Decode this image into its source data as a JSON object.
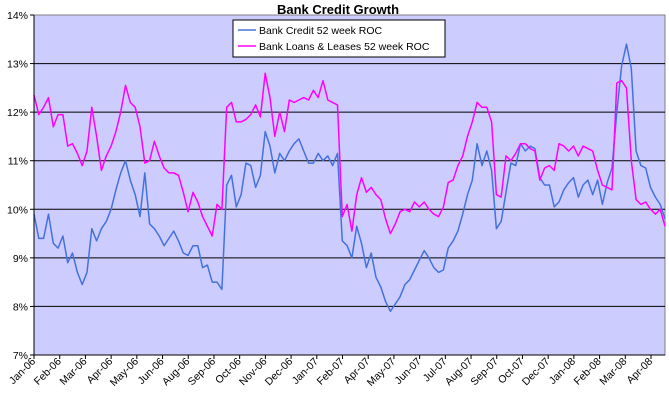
{
  "chart_data": {
    "type": "line",
    "title": "Bank Credit Growth",
    "xlabel": "",
    "ylabel": "",
    "ylim": [
      7,
      14
    ],
    "y_ticks": [
      7,
      8,
      9,
      10,
      11,
      12,
      13,
      14
    ],
    "y_tick_labels": [
      "7%",
      "8%",
      "9%",
      "10%",
      "11%",
      "12%",
      "13%",
      "14%"
    ],
    "x_tick_labels": [
      "Jan-06",
      "Feb-06",
      "Mar-06",
      "Apr-06",
      "May-06",
      "Jun-06",
      "Aug-06",
      "Sep-06",
      "Oct-06",
      "Nov-06",
      "Dec-06",
      "Jan-07",
      "Feb-07",
      "Apr-07",
      "May-07",
      "Jun-07",
      "Jul-07",
      "Aug-07",
      "Sep-07",
      "Oct-07",
      "Dec-07",
      "Jan-08",
      "Feb-08",
      "Mar-08",
      "Apr-08"
    ],
    "grid": true,
    "legend_position": "top-center",
    "plot_background": "#ccccff",
    "series": [
      {
        "name": "Bank Credit 52 week ROC",
        "color": "#4472dd",
        "values": [
          9.9,
          9.4,
          9.4,
          9.9,
          9.3,
          9.2,
          9.45,
          8.9,
          9.1,
          8.7,
          8.45,
          8.7,
          9.6,
          9.35,
          9.6,
          9.75,
          10.0,
          10.4,
          10.75,
          11.0,
          10.6,
          10.3,
          9.85,
          10.75,
          9.7,
          9.6,
          9.45,
          9.25,
          9.4,
          9.55,
          9.35,
          9.1,
          9.05,
          9.25,
          9.25,
          8.8,
          8.85,
          8.5,
          8.5,
          8.35,
          10.5,
          10.7,
          10.05,
          10.3,
          10.95,
          10.9,
          10.45,
          10.7,
          11.6,
          11.3,
          10.75,
          11.15,
          11.0,
          11.2,
          11.35,
          11.45,
          11.2,
          10.95,
          10.95,
          11.15,
          11.0,
          11.1,
          10.9,
          11.15,
          9.35,
          9.25,
          9.0,
          9.65,
          9.3,
          8.8,
          9.1,
          8.6,
          8.4,
          8.1,
          7.9,
          8.05,
          8.2,
          8.45,
          8.55,
          8.75,
          8.95,
          9.15,
          9.0,
          8.8,
          8.7,
          8.75,
          9.2,
          9.35,
          9.55,
          9.9,
          10.3,
          10.6,
          11.35,
          10.9,
          11.2,
          10.8,
          9.6,
          9.75,
          10.35,
          10.95,
          10.9,
          11.35,
          11.2,
          11.3,
          11.25,
          10.65,
          10.5,
          10.5,
          10.05,
          10.15,
          10.4,
          10.55,
          10.65,
          10.25,
          10.5,
          10.6,
          10.3,
          10.6,
          10.1,
          10.55,
          10.85,
          12.0,
          12.95,
          13.4,
          12.9,
          11.2,
          10.9,
          10.85,
          10.45,
          10.25,
          10.1,
          9.8
        ]
      },
      {
        "name": "Bank Loans & Leases 52 week ROC",
        "color": "#ff00ff",
        "values": [
          12.35,
          11.95,
          12.1,
          12.3,
          11.7,
          11.95,
          11.95,
          11.3,
          11.35,
          11.15,
          10.9,
          11.2,
          12.1,
          11.5,
          10.8,
          11.1,
          11.3,
          11.6,
          12.0,
          12.55,
          12.2,
          12.1,
          11.7,
          10.95,
          11.0,
          11.4,
          11.1,
          10.85,
          10.75,
          10.75,
          10.7,
          10.35,
          9.95,
          10.35,
          10.15,
          9.85,
          9.65,
          9.45,
          10.1,
          10.0,
          12.1,
          12.2,
          11.8,
          11.8,
          11.85,
          11.95,
          12.15,
          11.9,
          12.8,
          12.3,
          11.5,
          12.0,
          11.6,
          12.25,
          12.2,
          12.25,
          12.3,
          12.25,
          12.45,
          12.3,
          12.65,
          12.25,
          12.2,
          12.15,
          9.85,
          10.1,
          9.55,
          10.3,
          10.65,
          10.35,
          10.45,
          10.3,
          10.2,
          9.8,
          9.5,
          9.7,
          9.95,
          10.0,
          9.95,
          10.15,
          10.05,
          10.15,
          10.0,
          9.9,
          9.85,
          10.05,
          10.55,
          10.6,
          10.9,
          11.1,
          11.5,
          11.8,
          12.2,
          12.1,
          12.1,
          11.8,
          10.3,
          10.25,
          11.1,
          11.0,
          11.15,
          11.35,
          11.35,
          11.25,
          11.2,
          10.6,
          10.85,
          10.9,
          10.8,
          11.35,
          11.3,
          11.2,
          11.3,
          11.1,
          11.3,
          11.25,
          11.2,
          10.8,
          10.5,
          10.45,
          10.4,
          12.6,
          12.65,
          12.5,
          11.0,
          10.2,
          10.1,
          10.15,
          10.0,
          9.9,
          10.0,
          9.65
        ]
      }
    ]
  }
}
